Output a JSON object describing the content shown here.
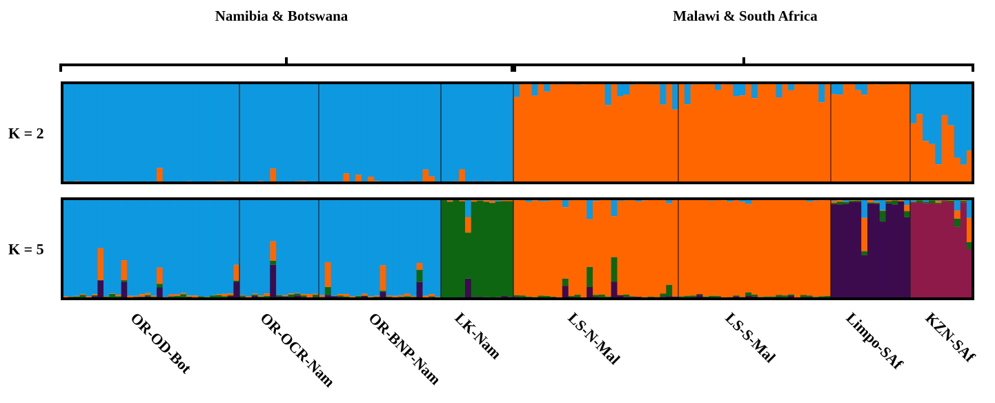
{
  "chart_data": {
    "type": "bar",
    "stacked": true,
    "regions": [
      "Namibia & Botswana",
      "Malawi & South Africa"
    ],
    "populations": [
      {
        "name": "OR-OD-Bot",
        "n": 30
      },
      {
        "name": "OR-OCR-Nam",
        "n": 13
      },
      {
        "name": "OR-BNP-Nam",
        "n": 20
      },
      {
        "name": "LK-Nam",
        "n": 12
      },
      {
        "name": "LS-N-Mal",
        "n": 27
      },
      {
        "name": "LS-S-Mal",
        "n": 25
      },
      {
        "name": "Limpo-SAf",
        "n": 13
      },
      {
        "name": "KZN-SAf",
        "n": 10
      }
    ],
    "cluster_colors": [
      "#0d98e0",
      "#ff6600",
      "#0e6612",
      "#3b0b4e",
      "#8e1a4a"
    ],
    "panels": [
      {
        "label": "K = 2",
        "k": 2
      },
      {
        "label": "K = 5",
        "k": 5
      }
    ],
    "ylim": [
      0,
      1
    ],
    "grid": false,
    "legend": "none"
  }
}
